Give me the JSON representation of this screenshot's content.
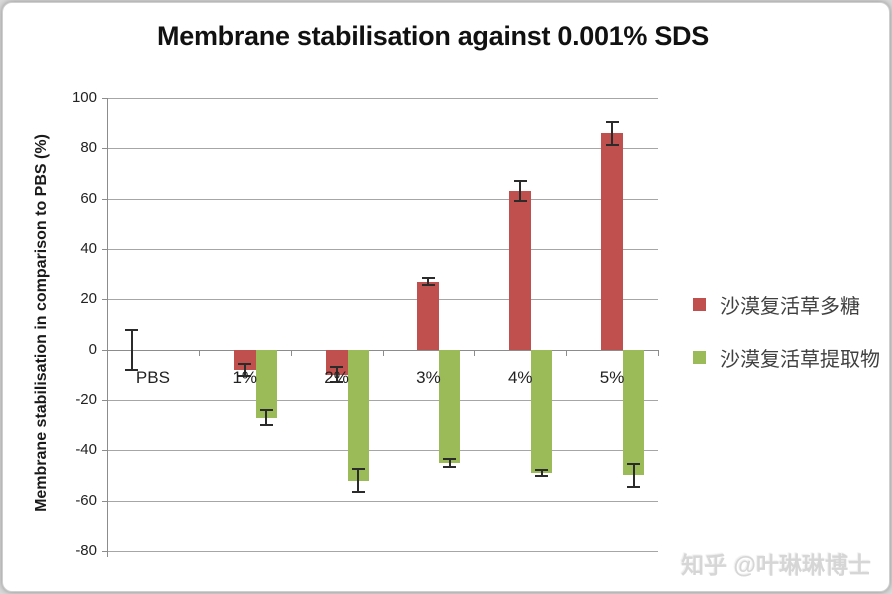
{
  "title": "Membrane stabilisation against 0.001% SDS",
  "watermark": "知乎 @叶琳琳博士",
  "colors": {
    "series_red": "#c0504d",
    "series_green": "#9bbb59",
    "gridline": "#a6a6a6",
    "axis": "#8c8c8c",
    "error_bar": "#2b2b2b",
    "card_background": "#ffffff",
    "watermark_gray": "#d6d6d6"
  },
  "chart_data": {
    "type": "bar",
    "title": "Membrane stabilisation against 0.001% SDS",
    "xlabel": "",
    "ylabel": "Membrane stabilisation in comparison to PBS (%)",
    "ylim": [
      -80,
      100
    ],
    "ytick_step": 20,
    "y_tick_labels": [
      "100",
      "80",
      "60",
      "40",
      "20",
      "0",
      "-20",
      "-40",
      "-60",
      "-80"
    ],
    "grid": true,
    "legend_position": "right",
    "categories": [
      "PBS",
      "1%",
      "2%",
      "3%",
      "4%",
      "5%"
    ],
    "series": [
      {
        "name": "沙漠复活草多糖",
        "color": "#c0504d",
        "values": [
          0,
          -8,
          -10,
          27,
          63,
          86
        ],
        "errors": [
          8,
          2.5,
          3,
          1.5,
          4,
          4.5
        ]
      },
      {
        "name": "沙漠复活草提取物",
        "color": "#9bbb59",
        "values": [
          0,
          -27,
          -52,
          -45,
          -49,
          -50
        ],
        "errors": [
          0,
          3,
          4.5,
          1.5,
          1,
          4.5
        ]
      }
    ],
    "notes": "PBS reference shows an error bar only (value 0 ± 8); error bars are symmetric"
  }
}
